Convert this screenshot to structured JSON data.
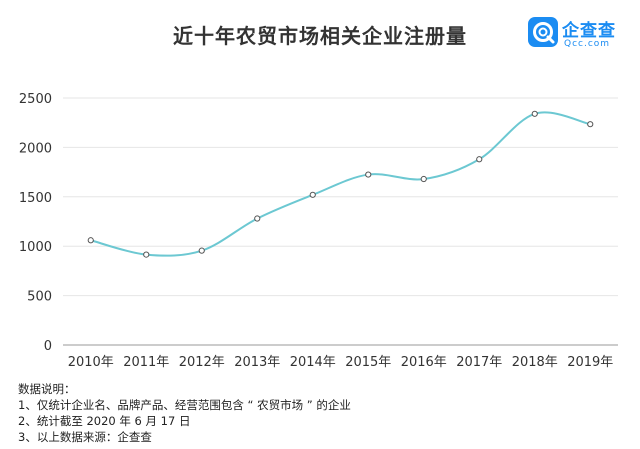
{
  "title": "近十年农贸市场相关企业注册量",
  "logo": {
    "name": "企查查",
    "url": "Qcc.com",
    "icon": "qcc-logo-icon",
    "color": "#1b8cf2"
  },
  "colors": {
    "line": "#6cc8d2",
    "grid": "#e6e6e6",
    "axis": "#999999"
  },
  "chart_data": {
    "type": "line",
    "title": "近十年农贸市场相关企业注册量",
    "categories": [
      "2010年",
      "2011年",
      "2012年",
      "2013年",
      "2014年",
      "2015年",
      "2016年",
      "2017年",
      "2018年",
      "2019年"
    ],
    "series": [
      {
        "values": [
          1060,
          915,
          955,
          1280,
          1520,
          1725,
          1680,
          1880,
          2340,
          2235
        ]
      }
    ],
    "yticks": [
      0,
      500,
      1000,
      1500,
      2000,
      2500
    ],
    "ylim": [
      0,
      2500
    ],
    "xlabel": "",
    "ylabel": "",
    "grid": true,
    "smooth": true,
    "legend": "none"
  },
  "notes": {
    "heading": "数据说明：",
    "items": [
      "1、仅统计企业名、品牌产品、经营范围包含 “ 农贸市场 ” 的企业",
      "2、统计截至 2020 年 6 月 17 日",
      "3、以上数据来源：企查查"
    ]
  }
}
